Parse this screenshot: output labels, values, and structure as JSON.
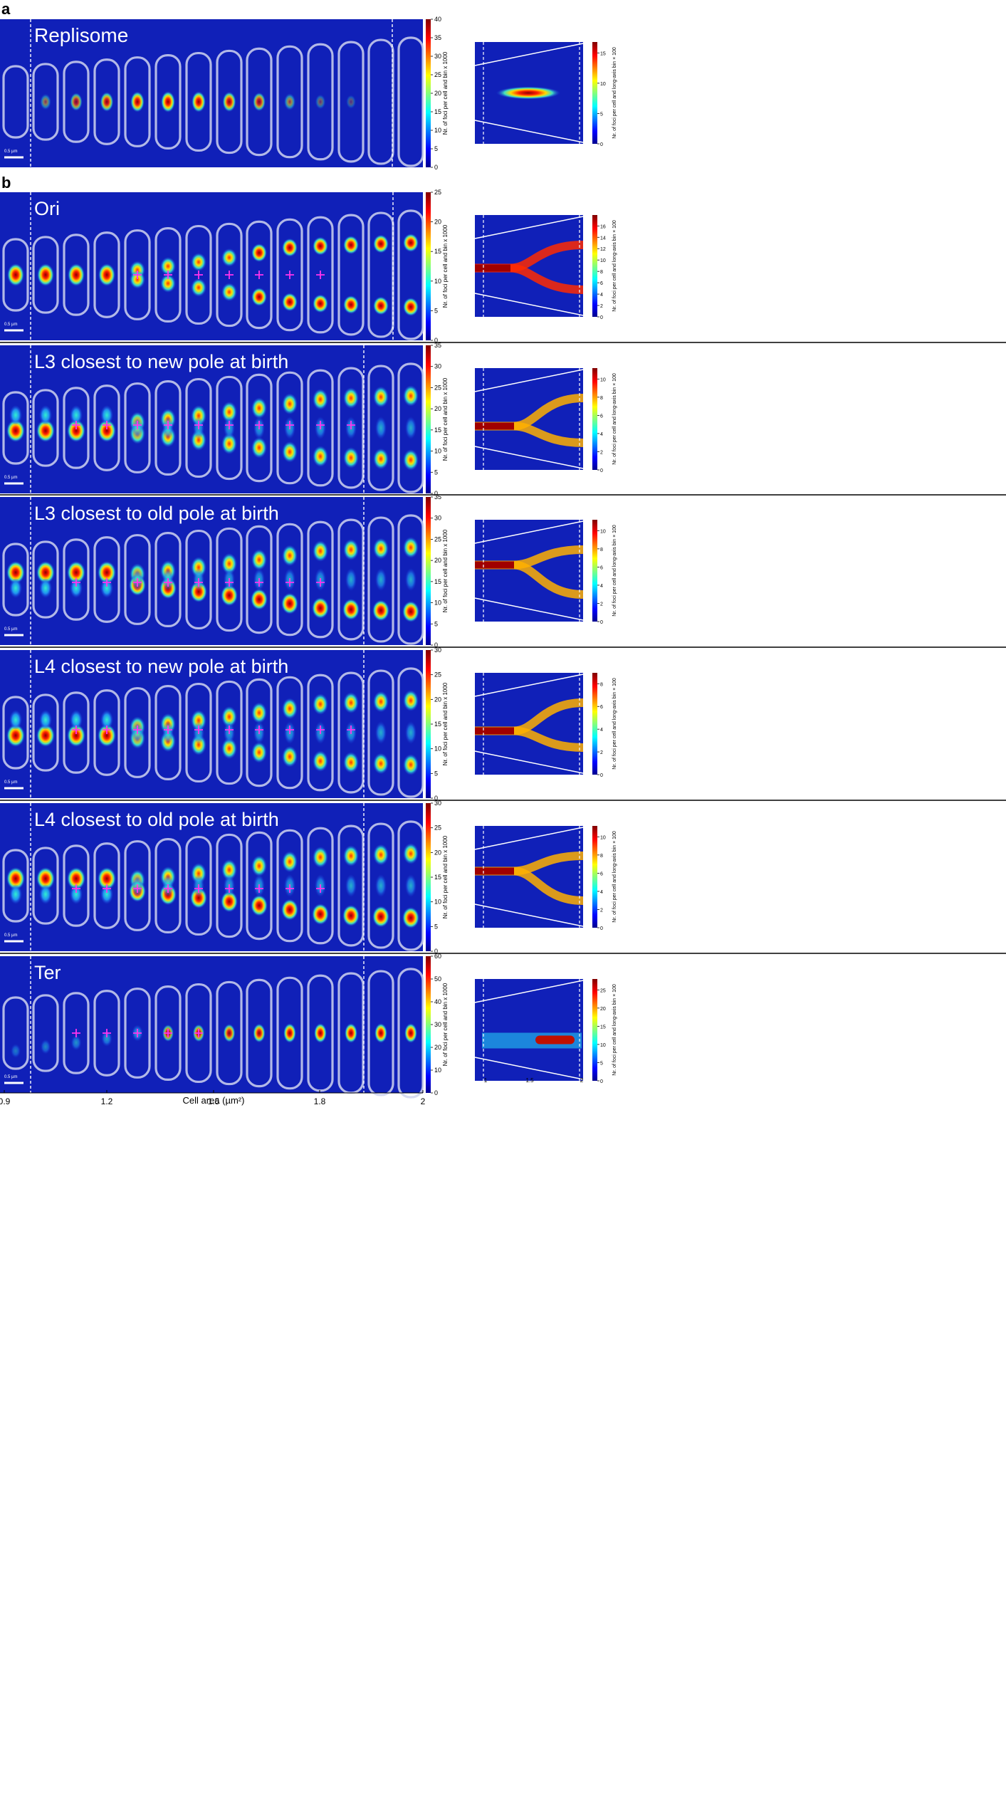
{
  "figure": {
    "panel_labels": [
      "a",
      "b"
    ],
    "scale_bar_label": "0.5 µm",
    "colorbar_main_label": "Nr. of foci per cell and bin x 1000",
    "colorbar_side_label": "Nr. of foci per cell and long-axis bin × 100",
    "x_axis_label_main": "Cell area (µm²)",
    "x_ticks_main": [
      "0.9",
      "1.2",
      "1.5",
      "1.8",
      "2"
    ],
    "x_ticks_side": [
      "1",
      "1.5",
      "2"
    ]
  },
  "rows": [
    {
      "title": "Replisome",
      "main_cbar": [
        0,
        5,
        10,
        15,
        20,
        25,
        30,
        35,
        40
      ],
      "side_cbar": [
        0,
        5,
        10,
        15
      ],
      "type": "replisome"
    },
    {
      "title": "Ori",
      "main_cbar": [
        0,
        5,
        10,
        15,
        20,
        25
      ],
      "side_cbar": [
        0,
        2,
        4,
        6,
        8,
        10,
        12,
        14,
        16
      ],
      "type": "ori"
    },
    {
      "title": "L3 closest to new pole at birth",
      "main_cbar": [
        0,
        5,
        10,
        15,
        20,
        25,
        30,
        35
      ],
      "side_cbar": [
        0,
        2,
        4,
        6,
        8,
        10
      ],
      "type": "l3new"
    },
    {
      "title": "L3 closest to old pole at birth",
      "main_cbar": [
        0,
        5,
        10,
        15,
        20,
        25,
        30,
        35
      ],
      "side_cbar": [
        0,
        2,
        4,
        6,
        8,
        10
      ],
      "type": "l3old"
    },
    {
      "title": "L4 closest to new pole at birth",
      "main_cbar": [
        0,
        5,
        10,
        15,
        20,
        25,
        30
      ],
      "side_cbar": [
        0,
        2,
        4,
        6,
        8
      ],
      "type": "l4new"
    },
    {
      "title": "L4 closest to old pole at birth",
      "main_cbar": [
        0,
        5,
        10,
        15,
        20,
        25,
        30
      ],
      "side_cbar": [
        0,
        2,
        4,
        6,
        8,
        10
      ],
      "type": "l4old"
    },
    {
      "title": "Ter",
      "main_cbar": [
        0,
        10,
        20,
        30,
        40,
        50,
        60
      ],
      "side_cbar": [
        0,
        5,
        10,
        15,
        20,
        25
      ],
      "type": "ter"
    }
  ]
}
